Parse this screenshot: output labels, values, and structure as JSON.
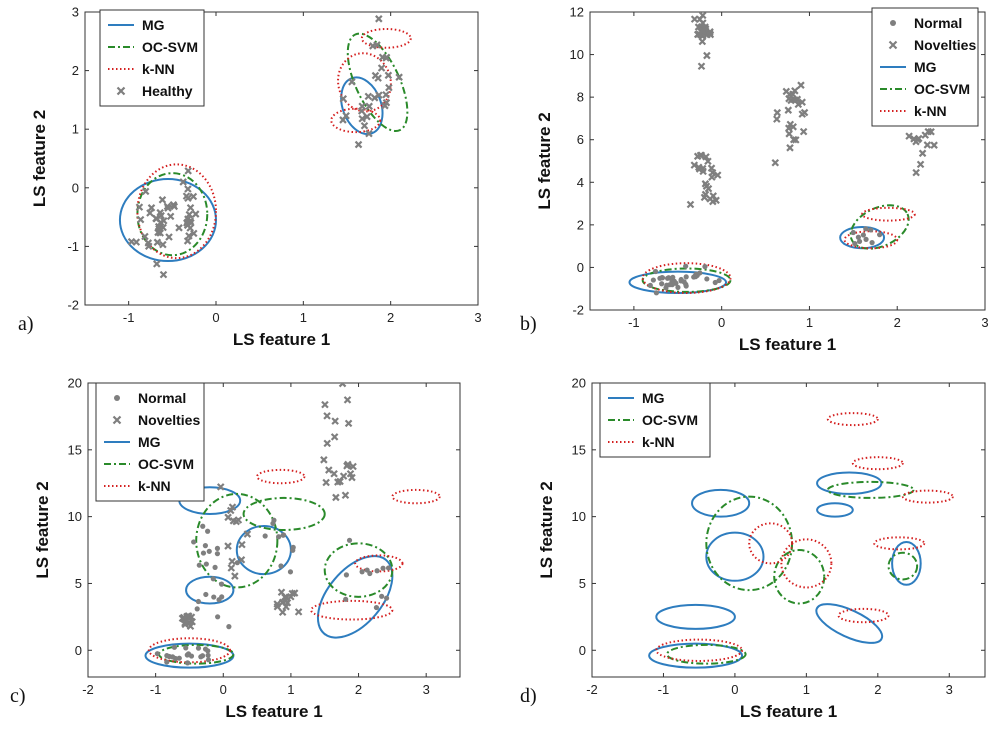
{
  "colors": {
    "mg": "#2e7dbf",
    "ocsvm": "#2a8a2a",
    "knn": "#d42020",
    "points": "#7f7f7f"
  },
  "chart_data": [
    {
      "type": "scatter",
      "panel": "a)",
      "xlabel": "LS feature 1",
      "ylabel": "LS feature 2",
      "xlim": [
        -1.5,
        3
      ],
      "ylim": [
        -2,
        3
      ],
      "xticks": [
        -1,
        0,
        1,
        2,
        3
      ],
      "yticks": [
        -2,
        -1,
        0,
        1,
        2,
        3
      ],
      "legend": [
        "MG",
        "OC-SVM",
        "k-NN",
        "Healthy"
      ],
      "legend_position": "top-left",
      "series": [
        {
          "name": "Healthy",
          "marker": "x",
          "clusters": [
            {
              "cx": -0.65,
              "cy": -0.6,
              "sx": 0.12,
              "sy": 0.35,
              "n": 34
            },
            {
              "cx": -0.3,
              "cy": -0.45,
              "sx": 0.08,
              "sy": 0.35,
              "n": 18
            },
            {
              "cx": 1.65,
              "cy": 1.3,
              "sx": 0.12,
              "sy": 0.3,
              "n": 16
            },
            {
              "cx": 1.9,
              "cy": 2.1,
              "sx": 0.1,
              "sy": 0.35,
              "n": 14
            }
          ]
        }
      ],
      "boundaries": [
        {
          "model": "MG",
          "cx": -0.55,
          "cy": -0.55,
          "rx": 0.55,
          "ry": 0.7,
          "angle": 0
        },
        {
          "model": "MG",
          "cx": 1.67,
          "cy": 1.4,
          "rx": 0.22,
          "ry": 0.5,
          "angle": -20
        },
        {
          "model": "OC-SVM",
          "cx": -0.5,
          "cy": -0.45,
          "rx": 0.4,
          "ry": 0.7,
          "angle": 0
        },
        {
          "model": "OC-SVM",
          "cx": 1.85,
          "cy": 1.8,
          "rx": 0.25,
          "ry": 0.9,
          "angle": -25
        },
        {
          "model": "k-NN",
          "cx": -0.45,
          "cy": -0.4,
          "rx": 0.45,
          "ry": 0.8,
          "angle": 0
        },
        {
          "model": "k-NN",
          "cx": 1.6,
          "cy": 1.15,
          "rx": 0.28,
          "ry": 0.2,
          "angle": 0
        },
        {
          "model": "k-NN",
          "cx": 1.7,
          "cy": 1.8,
          "rx": 0.3,
          "ry": 0.5,
          "angle": -15
        },
        {
          "model": "k-NN",
          "cx": 1.95,
          "cy": 2.55,
          "rx": 0.28,
          "ry": 0.16,
          "angle": 0
        }
      ]
    },
    {
      "type": "scatter",
      "panel": "b)",
      "xlabel": "LS feature 1",
      "ylabel": "LS feature 2",
      "xlim": [
        -1.5,
        3
      ],
      "ylim": [
        -2,
        12
      ],
      "xticks": [
        -1,
        0,
        1,
        2,
        3
      ],
      "yticks": [
        -2,
        0,
        2,
        4,
        6,
        8,
        10,
        12
      ],
      "legend": [
        "Normal",
        "Novelties",
        "MG",
        "OC-SVM",
        "k-NN"
      ],
      "legend_position": "top-right",
      "series": [
        {
          "name": "Normal",
          "marker": "dot",
          "clusters": [
            {
              "cx": -0.6,
              "cy": -0.5,
              "sx": 0.12,
              "sy": 0.25,
              "n": 24
            },
            {
              "cx": -0.25,
              "cy": -0.4,
              "sx": 0.08,
              "sy": 0.25,
              "n": 14
            },
            {
              "cx": 1.65,
              "cy": 1.4,
              "sx": 0.1,
              "sy": 0.25,
              "n": 10
            }
          ]
        },
        {
          "name": "Novelties",
          "marker": "x",
          "clusters": [
            {
              "cx": -0.2,
              "cy": 11.0,
              "sx": 0.05,
              "sy": 0.5,
              "n": 28
            },
            {
              "cx": -0.2,
              "cy": 4.2,
              "sx": 0.08,
              "sy": 0.8,
              "n": 24
            },
            {
              "cx": 0.8,
              "cy": 7.2,
              "sx": 0.1,
              "sy": 0.8,
              "n": 26
            },
            {
              "cx": 2.3,
              "cy": 6.0,
              "sx": 0.1,
              "sy": 0.5,
              "n": 14
            }
          ]
        }
      ],
      "boundaries": [
        {
          "model": "MG",
          "cx": -0.5,
          "cy": -0.7,
          "rx": 0.55,
          "ry": 0.5,
          "angle": 0
        },
        {
          "model": "MG",
          "cx": 1.6,
          "cy": 1.4,
          "rx": 0.25,
          "ry": 0.5,
          "angle": 0
        },
        {
          "model": "OC-SVM",
          "cx": -0.4,
          "cy": -0.6,
          "rx": 0.5,
          "ry": 0.55,
          "angle": 0
        },
        {
          "model": "OC-SVM",
          "cx": 1.8,
          "cy": 1.9,
          "rx": 0.35,
          "ry": 0.9,
          "angle": -25
        },
        {
          "model": "k-NN",
          "cx": -0.4,
          "cy": -0.5,
          "rx": 0.5,
          "ry": 0.7,
          "angle": 0
        },
        {
          "model": "k-NN",
          "cx": 1.7,
          "cy": 1.3,
          "rx": 0.3,
          "ry": 0.4,
          "angle": 0
        },
        {
          "model": "k-NN",
          "cx": 1.9,
          "cy": 2.5,
          "rx": 0.3,
          "ry": 0.3,
          "angle": 0
        }
      ]
    },
    {
      "type": "scatter",
      "panel": "c)",
      "xlabel": "LS feature 1",
      "ylabel": "LS feature 2",
      "xlim": [
        -2,
        3.5
      ],
      "ylim": [
        -2,
        20
      ],
      "xticks": [
        -2,
        -1,
        0,
        1,
        2,
        3
      ],
      "yticks": [
        0,
        5,
        10,
        15,
        20
      ],
      "legend": [
        "Normal",
        "Novelties",
        "MG",
        "OC-SVM",
        "k-NN"
      ],
      "legend_position": "top-left",
      "series": [
        {
          "name": "Normal",
          "marker": "dot",
          "clusters": [
            {
              "cx": -0.5,
              "cy": -0.4,
              "sx": 0.2,
              "sy": 0.3,
              "n": 20
            },
            {
              "cx": -0.2,
              "cy": 5.5,
              "sx": 0.15,
              "sy": 2.5,
              "n": 22
            },
            {
              "cx": 0.8,
              "cy": 8.0,
              "sx": 0.15,
              "sy": 1.0,
              "n": 10
            },
            {
              "cx": 2.1,
              "cy": 5.0,
              "sx": 0.2,
              "sy": 1.5,
              "n": 12
            }
          ]
        },
        {
          "name": "Novelties",
          "marker": "x",
          "clusters": [
            {
              "cx": -0.55,
              "cy": 2.3,
              "sx": 0.06,
              "sy": 0.3,
              "n": 14
            },
            {
              "cx": 0.1,
              "cy": 8.0,
              "sx": 0.12,
              "sy": 1.8,
              "n": 14
            },
            {
              "cx": 0.95,
              "cy": 4.0,
              "sx": 0.1,
              "sy": 0.6,
              "n": 14
            },
            {
              "cx": 1.7,
              "cy": 14.0,
              "sx": 0.12,
              "sy": 2.5,
              "n": 22
            }
          ]
        }
      ],
      "boundaries": [
        {
          "model": "MG",
          "cx": -0.5,
          "cy": -0.4,
          "rx": 0.65,
          "ry": 0.9,
          "angle": 0
        },
        {
          "model": "MG",
          "cx": -0.2,
          "cy": 11.2,
          "rx": 0.45,
          "ry": 1.0,
          "angle": 0
        },
        {
          "model": "MG",
          "cx": -0.2,
          "cy": 4.5,
          "rx": 0.35,
          "ry": 1.0,
          "angle": 0
        },
        {
          "model": "MG",
          "cx": 0.6,
          "cy": 7.5,
          "rx": 0.4,
          "ry": 1.8,
          "angle": 0
        },
        {
          "model": "MG",
          "cx": 1.95,
          "cy": 4.0,
          "rx": 0.4,
          "ry": 3.6,
          "angle": 40
        },
        {
          "model": "OC-SVM",
          "cx": -0.4,
          "cy": -0.3,
          "rx": 0.55,
          "ry": 0.7,
          "angle": 0
        },
        {
          "model": "OC-SVM",
          "cx": 0.2,
          "cy": 8.2,
          "rx": 0.6,
          "ry": 3.5,
          "angle": 0
        },
        {
          "model": "OC-SVM",
          "cx": 0.9,
          "cy": 10.2,
          "rx": 0.6,
          "ry": 1.2,
          "angle": 0
        },
        {
          "model": "OC-SVM",
          "cx": 2.0,
          "cy": 6.0,
          "rx": 0.5,
          "ry": 2.0,
          "angle": 0
        },
        {
          "model": "k-NN",
          "cx": -0.5,
          "cy": 0.0,
          "rx": 0.6,
          "ry": 0.9,
          "angle": 0
        },
        {
          "model": "k-NN",
          "cx": 0.85,
          "cy": 13.0,
          "rx": 0.35,
          "ry": 0.5,
          "angle": 0
        },
        {
          "model": "k-NN",
          "cx": 2.85,
          "cy": 11.5,
          "rx": 0.35,
          "ry": 0.5,
          "angle": 0
        },
        {
          "model": "k-NN",
          "cx": 1.9,
          "cy": 3.0,
          "rx": 0.6,
          "ry": 0.7,
          "angle": 0
        },
        {
          "model": "k-NN",
          "cx": 2.3,
          "cy": 6.5,
          "rx": 0.35,
          "ry": 0.6,
          "angle": 0
        }
      ]
    },
    {
      "type": "scatter",
      "panel": "d)",
      "xlabel": "LS feature 1",
      "ylabel": "LS feature 2",
      "xlim": [
        -2,
        3.5
      ],
      "ylim": [
        -2,
        20
      ],
      "xticks": [
        -2,
        -1,
        0,
        1,
        2,
        3
      ],
      "yticks": [
        0,
        5,
        10,
        15,
        20
      ],
      "legend": [
        "MG",
        "OC-SVM",
        "k-NN"
      ],
      "legend_position": "top-left",
      "series": [],
      "boundaries": [
        {
          "model": "MG",
          "cx": -0.55,
          "cy": -0.4,
          "rx": 0.65,
          "ry": 0.9,
          "angle": 0
        },
        {
          "model": "MG",
          "cx": -0.55,
          "cy": 2.5,
          "rx": 0.55,
          "ry": 0.9,
          "angle": 0
        },
        {
          "model": "MG",
          "cx": -0.2,
          "cy": 11.0,
          "rx": 0.4,
          "ry": 1.0,
          "angle": 0
        },
        {
          "model": "MG",
          "cx": 0.0,
          "cy": 7.0,
          "rx": 0.4,
          "ry": 1.8,
          "angle": 0
        },
        {
          "model": "MG",
          "cx": 1.4,
          "cy": 10.5,
          "rx": 0.25,
          "ry": 0.5,
          "angle": 0
        },
        {
          "model": "MG",
          "cx": 1.6,
          "cy": 12.5,
          "rx": 0.45,
          "ry": 0.8,
          "angle": 0
        },
        {
          "model": "MG",
          "cx": 1.6,
          "cy": 2.0,
          "rx": 0.5,
          "ry": 1.0,
          "angle": 25
        },
        {
          "model": "MG",
          "cx": 2.4,
          "cy": 6.5,
          "rx": 0.2,
          "ry": 1.6,
          "angle": 0
        },
        {
          "model": "OC-SVM",
          "cx": -0.4,
          "cy": -0.3,
          "rx": 0.55,
          "ry": 0.7,
          "angle": 0
        },
        {
          "model": "OC-SVM",
          "cx": 0.2,
          "cy": 8.0,
          "rx": 0.6,
          "ry": 3.5,
          "angle": 0
        },
        {
          "model": "OC-SVM",
          "cx": 0.9,
          "cy": 5.5,
          "rx": 0.35,
          "ry": 2.0,
          "angle": 0
        },
        {
          "model": "OC-SVM",
          "cx": 1.9,
          "cy": 12.0,
          "rx": 0.6,
          "ry": 0.6,
          "angle": 0
        },
        {
          "model": "OC-SVM",
          "cx": 2.35,
          "cy": 6.3,
          "rx": 0.2,
          "ry": 1.0,
          "angle": 0
        },
        {
          "model": "k-NN",
          "cx": 1.65,
          "cy": 17.3,
          "rx": 0.35,
          "ry": 0.45,
          "angle": 0
        },
        {
          "model": "k-NN",
          "cx": 2.0,
          "cy": 14.0,
          "rx": 0.35,
          "ry": 0.45,
          "angle": 0
        },
        {
          "model": "k-NN",
          "cx": 2.7,
          "cy": 11.5,
          "rx": 0.35,
          "ry": 0.45,
          "angle": 0
        },
        {
          "model": "k-NN",
          "cx": -0.5,
          "cy": 0.0,
          "rx": 0.6,
          "ry": 0.8,
          "angle": 0
        },
        {
          "model": "k-NN",
          "cx": 0.5,
          "cy": 8.0,
          "rx": 0.3,
          "ry": 1.5,
          "angle": 0
        },
        {
          "model": "k-NN",
          "cx": 1.0,
          "cy": 6.5,
          "rx": 0.35,
          "ry": 1.8,
          "angle": 0
        },
        {
          "model": "k-NN",
          "cx": 1.8,
          "cy": 2.6,
          "rx": 0.35,
          "ry": 0.5,
          "angle": 0
        },
        {
          "model": "k-NN",
          "cx": 2.3,
          "cy": 8.0,
          "rx": 0.35,
          "ry": 0.45,
          "angle": 0
        }
      ]
    }
  ]
}
